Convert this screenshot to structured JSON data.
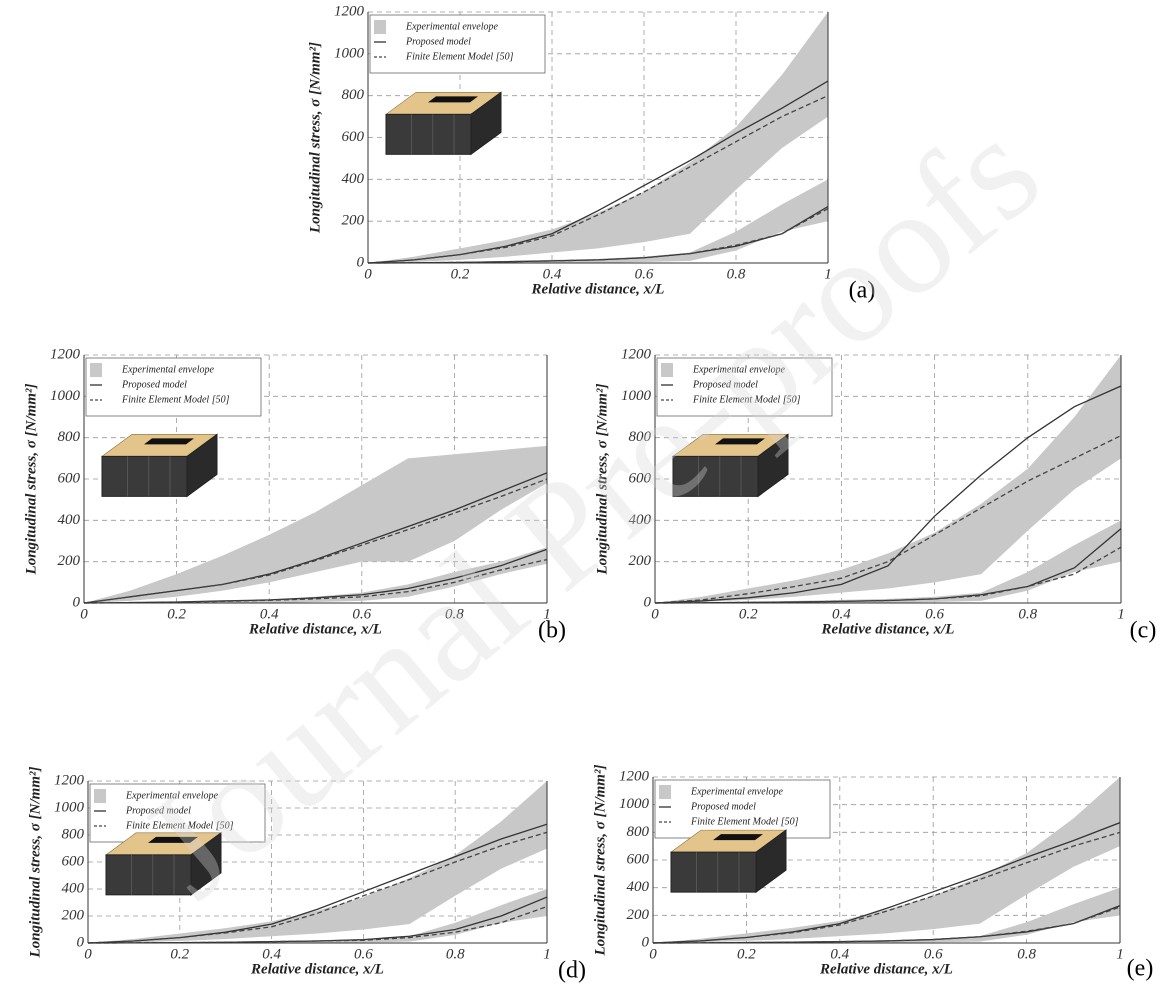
{
  "watermark": "Journal Pre-proofs",
  "chart_data": [
    {
      "type": "line",
      "panel": "(a)",
      "x_label": "Relative distance, x/L",
      "y_label": "Longitudinal stress, σ [N/mm²]",
      "x": [
        0,
        0.1,
        0.2,
        0.3,
        0.4,
        0.5,
        0.6,
        0.7,
        0.8,
        0.9,
        1
      ],
      "xlim": [
        0,
        1
      ],
      "ylim": [
        0,
        1200
      ],
      "xticks": [
        0,
        0.2,
        0.4,
        0.6,
        0.8,
        1
      ],
      "yticks": [
        0,
        200,
        400,
        600,
        800,
        1000,
        1200
      ],
      "grid": true,
      "series": [
        {
          "name": "Experimental envelope",
          "color": "#c8c8c8",
          "bands": [
            {
              "lower": [
                0,
                5,
                15,
                30,
                50,
                70,
                100,
                140,
                350,
                550,
                700
              ],
              "upper": [
                0,
                30,
                70,
                110,
                160,
                240,
                340,
                480,
                650,
                900,
                1200
              ]
            },
            {
              "lower": [
                0,
                0,
                0,
                0,
                0,
                0,
                5,
                10,
                60,
                150,
                200
              ],
              "upper": [
                0,
                2,
                5,
                10,
                15,
                20,
                30,
                50,
                150,
                280,
                400
              ]
            }
          ]
        },
        {
          "name": "Proposed model",
          "color": "#333333",
          "style": "solid",
          "curves": [
            [
              0,
              15,
              40,
              80,
              140,
              250,
              370,
              490,
              620,
              740,
              870
            ],
            [
              0,
              1,
              3,
              6,
              10,
              15,
              25,
              45,
              80,
              140,
              270
            ]
          ]
        },
        {
          "name": "Finite Element Model [50]",
          "color": "#444444",
          "style": "dashed",
          "curves": [
            [
              0,
              15,
              40,
              75,
              130,
              230,
              340,
              460,
              580,
              700,
              800
            ],
            [
              0,
              1,
              3,
              6,
              10,
              15,
              25,
              45,
              85,
              140,
              260
            ]
          ]
        }
      ]
    },
    {
      "type": "line",
      "panel": "(b)",
      "x_label": "Relative distance, x/L",
      "y_label": "Longitudinal stress, σ [N/mm²]",
      "x": [
        0,
        0.1,
        0.2,
        0.3,
        0.4,
        0.5,
        0.6,
        0.7,
        0.8,
        0.9,
        1
      ],
      "xlim": [
        0,
        1
      ],
      "ylim": [
        0,
        1200
      ],
      "xticks": [
        0,
        0.2,
        0.4,
        0.6,
        0.8,
        1
      ],
      "yticks": [
        0,
        200,
        400,
        600,
        800,
        1000,
        1200
      ],
      "grid": true,
      "series": [
        {
          "name": "Experimental envelope",
          "color": "#c8c8c8",
          "bands": [
            {
              "lower": [
                0,
                10,
                30,
                60,
                100,
                150,
                200,
                200,
                300,
                450,
                580
              ],
              "upper": [
                0,
                60,
                140,
                230,
                330,
                440,
                570,
                700,
                720,
                740,
                760
              ]
            },
            {
              "lower": [
                0,
                0,
                0,
                0,
                0,
                5,
                10,
                30,
                80,
                140,
                190
              ],
              "upper": [
                0,
                2,
                5,
                10,
                15,
                30,
                50,
                90,
                150,
                200,
                270
              ]
            }
          ]
        },
        {
          "name": "Proposed model",
          "color": "#333333",
          "style": "solid",
          "curves": [
            [
              0,
              30,
              60,
              90,
              140,
              210,
              290,
              370,
              450,
              540,
              630
            ],
            [
              0,
              2,
              5,
              10,
              15,
              25,
              40,
              70,
              120,
              180,
              260
            ]
          ]
        },
        {
          "name": "Finite Element Model [50]",
          "color": "#444444",
          "style": "dashed",
          "curves": [
            [
              0,
              30,
              60,
              90,
              135,
              205,
              280,
              355,
              435,
              515,
              600
            ],
            [
              0,
              1,
              4,
              8,
              13,
              20,
              30,
              55,
              100,
              160,
              210
            ]
          ]
        }
      ]
    },
    {
      "type": "line",
      "panel": "(c)",
      "x_label": "Relative distance, x/L",
      "y_label": "Longitudinal stress, σ [N/mm²]",
      "x": [
        0,
        0.1,
        0.2,
        0.3,
        0.4,
        0.5,
        0.6,
        0.7,
        0.8,
        0.9,
        1
      ],
      "xlim": [
        0,
        1
      ],
      "ylim": [
        0,
        1200
      ],
      "xticks": [
        0,
        0.2,
        0.4,
        0.6,
        0.8,
        1
      ],
      "yticks": [
        0,
        200,
        400,
        600,
        800,
        1000,
        1200
      ],
      "grid": true,
      "series": [
        {
          "name": "Experimental envelope",
          "color": "#c8c8c8",
          "bands": [
            {
              "lower": [
                0,
                5,
                15,
                30,
                50,
                70,
                100,
                140,
                350,
                550,
                700
              ],
              "upper": [
                0,
                30,
                70,
                110,
                160,
                240,
                340,
                480,
                650,
                900,
                1200
              ]
            },
            {
              "lower": [
                0,
                0,
                0,
                0,
                0,
                0,
                5,
                10,
                60,
                150,
                200
              ],
              "upper": [
                0,
                2,
                5,
                10,
                15,
                20,
                30,
                50,
                150,
                280,
                400
              ]
            }
          ]
        },
        {
          "name": "Proposed model",
          "color": "#333333",
          "style": "solid",
          "curves": [
            [
              0,
              10,
              25,
              50,
              90,
              180,
              420,
              620,
              800,
              950,
              1050
            ],
            [
              0,
              1,
              3,
              5,
              8,
              12,
              20,
              40,
              80,
              170,
              360
            ]
          ]
        },
        {
          "name": "Finite Element Model [50]",
          "color": "#444444",
          "style": "dashed",
          "curves": [
            [
              0,
              15,
              45,
              80,
              120,
              200,
              330,
              460,
              590,
              700,
              810
            ],
            [
              0,
              1,
              3,
              5,
              8,
              12,
              20,
              35,
              80,
              140,
              270
            ]
          ]
        }
      ]
    },
    {
      "type": "line",
      "panel": "(d)",
      "x_label": "Relative distance, x/L",
      "y_label": "Longitudinal stress, σ [N/mm²]",
      "x": [
        0,
        0.1,
        0.2,
        0.3,
        0.4,
        0.5,
        0.6,
        0.7,
        0.8,
        0.9,
        1
      ],
      "xlim": [
        0,
        1
      ],
      "ylim": [
        0,
        1200
      ],
      "xticks": [
        0,
        0.2,
        0.4,
        0.6,
        0.8,
        1
      ],
      "yticks": [
        0,
        200,
        400,
        600,
        800,
        1000,
        1200
      ],
      "grid": true,
      "series": [
        {
          "name": "Experimental envelope",
          "color": "#c8c8c8",
          "bands": [
            {
              "lower": [
                0,
                5,
                15,
                30,
                50,
                70,
                100,
                140,
                350,
                550,
                700
              ],
              "upper": [
                0,
                30,
                70,
                110,
                160,
                240,
                340,
                480,
                650,
                900,
                1200
              ]
            },
            {
              "lower": [
                0,
                0,
                0,
                0,
                0,
                0,
                5,
                10,
                60,
                150,
                200
              ],
              "upper": [
                0,
                2,
                5,
                10,
                15,
                20,
                30,
                50,
                150,
                280,
                400
              ]
            }
          ]
        },
        {
          "name": "Proposed model",
          "color": "#333333",
          "style": "solid",
          "curves": [
            [
              0,
              15,
              40,
              80,
              140,
              250,
              380,
              510,
              640,
              770,
              880
            ],
            [
              0,
              1,
              3,
              5,
              10,
              15,
              25,
              50,
              100,
              200,
              340
            ]
          ]
        },
        {
          "name": "Finite Element Model [50]",
          "color": "#444444",
          "style": "dashed",
          "curves": [
            [
              0,
              15,
              40,
              75,
              120,
              220,
              350,
              470,
              600,
              720,
              820
            ],
            [
              0,
              1,
              3,
              5,
              10,
              15,
              20,
              40,
              80,
              150,
              270
            ]
          ]
        }
      ]
    },
    {
      "type": "line",
      "panel": "(e)",
      "x_label": "Relative distance, x/L",
      "y_label": "Longitudinal stress, σ [N/mm²]",
      "x": [
        0,
        0.1,
        0.2,
        0.3,
        0.4,
        0.5,
        0.6,
        0.7,
        0.8,
        0.9,
        1
      ],
      "xlim": [
        0,
        1
      ],
      "ylim": [
        0,
        1200
      ],
      "xticks": [
        0,
        0.2,
        0.4,
        0.6,
        0.8,
        1
      ],
      "yticks": [
        0,
        200,
        400,
        600,
        800,
        1000,
        1200
      ],
      "grid": true,
      "series": [
        {
          "name": "Experimental envelope",
          "color": "#c8c8c8",
          "bands": [
            {
              "lower": [
                0,
                5,
                15,
                30,
                50,
                70,
                100,
                140,
                350,
                550,
                700
              ],
              "upper": [
                0,
                30,
                70,
                110,
                160,
                240,
                340,
                480,
                650,
                900,
                1200
              ]
            },
            {
              "lower": [
                0,
                0,
                0,
                0,
                0,
                0,
                5,
                10,
                60,
                150,
                200
              ],
              "upper": [
                0,
                2,
                5,
                10,
                15,
                20,
                30,
                50,
                150,
                280,
                400
              ]
            }
          ]
        },
        {
          "name": "Proposed model",
          "color": "#333333",
          "style": "solid",
          "curves": [
            [
              0,
              15,
              40,
              80,
              140,
              250,
              370,
              490,
              620,
              740,
              870
            ],
            [
              0,
              1,
              3,
              6,
              10,
              15,
              25,
              45,
              80,
              140,
              270
            ]
          ]
        },
        {
          "name": "Finite Element Model [50]",
          "color": "#444444",
          "style": "dashed",
          "curves": [
            [
              0,
              15,
              40,
              75,
              130,
              230,
              340,
              460,
              580,
              700,
              800
            ],
            [
              0,
              1,
              3,
              6,
              10,
              15,
              25,
              45,
              85,
              140,
              260
            ]
          ]
        }
      ]
    }
  ]
}
